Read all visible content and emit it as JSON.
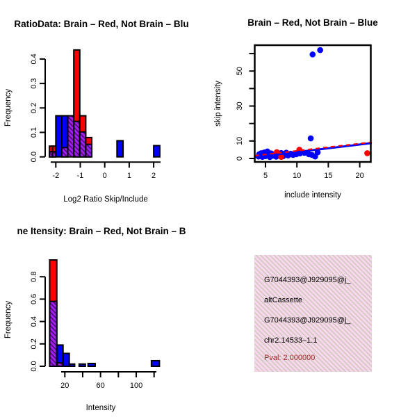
{
  "figure": {
    "background": "#ffffff"
  },
  "colors": {
    "brain_red": "#ff0000",
    "not_brain_blue": "#0000ff",
    "overlap_purple": "#a020f0",
    "overlap_hatch_dark": "#4b0a6e",
    "pval_red": "#a52a2a",
    "info_box_bg": "#f8d7ee",
    "info_box_hatch": "#ccc8b6",
    "axis_black": "#000000"
  },
  "chart_data": [
    {
      "id": "ratio",
      "type": "bar",
      "title": "RatioData: Brain – Red, Not Brain – Blu",
      "xlabel": "Log2 Ratio Skip/Include",
      "ylabel": "Frequency",
      "xlim": [
        -2.45,
        2.45
      ],
      "ylim": [
        0,
        0.45
      ],
      "x_ticks": [
        {
          "v": -2,
          "l": "-2"
        },
        {
          "v": -1,
          "l": "-1"
        },
        {
          "v": 0,
          "l": "0"
        },
        {
          "v": 1,
          "l": "1"
        },
        {
          "v": 2,
          "l": "2"
        }
      ],
      "y_ticks": [
        {
          "v": 0,
          "l": "0.0"
        },
        {
          "v": 0.1,
          "l": "0.1"
        },
        {
          "v": 0.2,
          "l": "0.2"
        },
        {
          "v": 0.3,
          "l": "0.3"
        },
        {
          "v": 0.4,
          "l": "0.4"
        }
      ],
      "bars": [
        {
          "x0": -2.26,
          "x1": -2.13,
          "red": 0.044,
          "overlap": 0.021
        },
        {
          "x0": -2.13,
          "x1": -2.0,
          "red": 0.044,
          "overlap": 0.021
        },
        {
          "x0": -2.0,
          "x1": -1.755,
          "blue": 0.168
        },
        {
          "x0": -1.755,
          "x1": -1.51,
          "blue": 0.168,
          "overlap": 0.038
        },
        {
          "x0": -1.51,
          "x1": -1.265,
          "overlap": 0.168
        },
        {
          "x0": -1.265,
          "x1": -1.02,
          "red": 0.437,
          "overlap": 0.145
        },
        {
          "x0": -1.02,
          "x1": -0.775,
          "red": 0.168,
          "overlap": 0.102
        },
        {
          "x0": -0.775,
          "x1": -0.53,
          "red": 0.079,
          "overlap": 0.051
        },
        {
          "x0": 0.5,
          "x1": 0.75,
          "blue": 0.066
        },
        {
          "x0": 2.0,
          "x1": 2.25,
          "blue": 0.046
        }
      ]
    },
    {
      "id": "scatter",
      "type": "scatter",
      "title": "Brain – Red, Not Brain – Blue",
      "xlabel": "include intensity",
      "ylabel": "skip intensity",
      "xlim": [
        3.3,
        21.8
      ],
      "ylim": [
        -2,
        64.8
      ],
      "x_ticks": [
        {
          "v": 5,
          "l": "5"
        },
        {
          "v": 10,
          "l": "10"
        },
        {
          "v": 15,
          "l": "15"
        },
        {
          "v": 20,
          "l": "20"
        }
      ],
      "y_ticks": [
        {
          "v": 0,
          "l": "0"
        },
        {
          "v": 10,
          "l": "10"
        },
        {
          "v": 20,
          "l": ""
        },
        {
          "v": 30,
          "l": "30"
        },
        {
          "v": 40,
          "l": ""
        },
        {
          "v": 50,
          "l": "50"
        },
        {
          "v": 60,
          "l": ""
        }
      ],
      "series": [
        {
          "name": "Not Brain (blue)",
          "color": "#0000ff",
          "points": [
            [
              3.9,
              1.1
            ],
            [
              4.0,
              2.4
            ],
            [
              4.2,
              1.6
            ],
            [
              4.3,
              3.0
            ],
            [
              4.5,
              0.9
            ],
            [
              4.6,
              2.1
            ],
            [
              4.8,
              3.4
            ],
            [
              5.0,
              1.3
            ],
            [
              5.1,
              2.6
            ],
            [
              5.3,
              4.0
            ],
            [
              5.5,
              1.8
            ],
            [
              5.7,
              0.8
            ],
            [
              5.9,
              2.9
            ],
            [
              6.1,
              1.5
            ],
            [
              6.4,
              2.2
            ],
            [
              6.7,
              1.0
            ],
            [
              7.0,
              2.5
            ],
            [
              7.2,
              1.6
            ],
            [
              7.5,
              3.1
            ],
            [
              7.8,
              1.2
            ],
            [
              8.0,
              2.3
            ],
            [
              8.3,
              3.3
            ],
            [
              8.6,
              1.7
            ],
            [
              9.0,
              2.7
            ],
            [
              9.4,
              2.0
            ],
            [
              9.9,
              2.4
            ],
            [
              10.5,
              2.9
            ],
            [
              11.2,
              3.2
            ],
            [
              11.9,
              2.4
            ],
            [
              12.4,
              2.0
            ],
            [
              12.9,
              1.1
            ],
            [
              13.3,
              3.5
            ],
            [
              12.2,
              11.5
            ],
            [
              12.5,
              59.5
            ],
            [
              13.7,
              62.0
            ]
          ]
        },
        {
          "name": "Brain (red)",
          "color": "#ff0000",
          "points": [
            [
              6.8,
              3.6
            ],
            [
              7.5,
              0.9
            ],
            [
              10.4,
              5.0
            ],
            [
              21.2,
              3.0
            ]
          ]
        }
      ],
      "fit_lines": [
        {
          "name": "blue fit",
          "color": "#0000ff",
          "dashed": false,
          "x0": 3.3,
          "y0": 0.8,
          "x1": 21.9,
          "y1": 8.8
        },
        {
          "name": "red fit",
          "color": "#ff0000",
          "dashed": true,
          "x0": 3.3,
          "y0": 1.6,
          "x1": 21.9,
          "y1": 9.3
        }
      ]
    },
    {
      "id": "intensity",
      "type": "bar",
      "title": "ne Itensity: Brain – Red, Not Brain – B",
      "xlabel": "Intensity",
      "ylabel": "Frequency",
      "xlim": [
        0,
        128
      ],
      "ylim": [
        0,
        0.97
      ],
      "x_ticks": [
        {
          "v": 20,
          "l": "20"
        },
        {
          "v": 40,
          "l": ""
        },
        {
          "v": 60,
          "l": "60"
        },
        {
          "v": 80,
          "l": ""
        },
        {
          "v": 100,
          "l": "100"
        },
        {
          "v": 120,
          "l": ""
        }
      ],
      "y_ticks": [
        {
          "v": 0,
          "l": "0.0"
        },
        {
          "v": 0.2,
          "l": "0.2"
        },
        {
          "v": 0.4,
          "l": "0.4"
        },
        {
          "v": 0.6,
          "l": "0.6"
        },
        {
          "v": 0.8,
          "l": "0.8"
        }
      ],
      "bars": [
        {
          "x0": 3,
          "x1": 11,
          "red": 0.95,
          "overlap": 0.58
        },
        {
          "x0": 11,
          "x1": 18,
          "blue": 0.19,
          "overlap": 0.03
        },
        {
          "x0": 18,
          "x1": 25,
          "blue": 0.115
        },
        {
          "x0": 25,
          "x1": 31,
          "blue": 0.02
        },
        {
          "x0": 36,
          "x1": 43,
          "blue": 0.02
        },
        {
          "x0": 46,
          "x1": 54,
          "blue": 0.025
        },
        {
          "x0": 117,
          "x1": 126,
          "blue": 0.05
        }
      ]
    }
  ],
  "info_box": {
    "lines": [
      {
        "text": "G7044393@J929095@j_",
        "color": "#000000"
      },
      {
        "text": "altCassette",
        "color": "#000000"
      },
      {
        "text": "G7044393@J929095@j_",
        "color": "#000000"
      },
      {
        "text": "chr2.14533–1.1",
        "color": "#000000"
      },
      {
        "text": "Pval: 2.000000",
        "color": "#a52a2a"
      }
    ]
  }
}
